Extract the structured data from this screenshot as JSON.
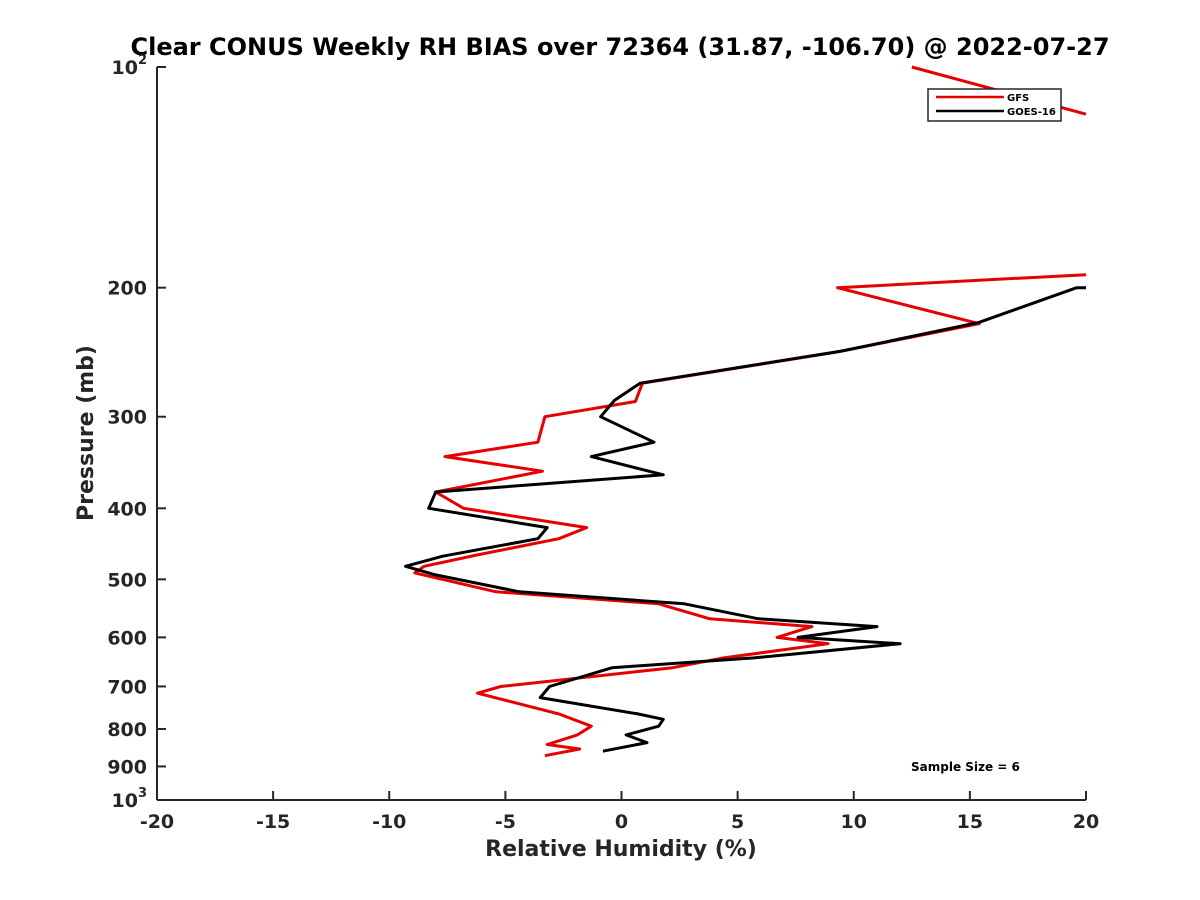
{
  "chart_data": {
    "type": "line",
    "title": "Clear CONUS Weekly RH BIAS over 72364 (31.87, -106.70) @ 2022-07-27",
    "xlabel": "Relative Humidity (%)",
    "ylabel": "Pressure (mb)",
    "xlim": [
      -20,
      20
    ],
    "ylim": [
      100,
      1000
    ],
    "yscale": "log",
    "yreversed": true,
    "grid": false,
    "legend_position": "top-right",
    "x_ticks": [
      -20,
      -15,
      -10,
      -5,
      0,
      5,
      10,
      15,
      20
    ],
    "x_tick_labels": [
      "-20",
      "-15",
      "-10",
      "-5",
      "0",
      "5",
      "10",
      "15",
      "20"
    ],
    "y_ticks": [
      {
        "value": 100,
        "base": "10",
        "exp": "2"
      },
      {
        "value": 200,
        "base": "200",
        "exp": ""
      },
      {
        "value": 300,
        "base": "300",
        "exp": ""
      },
      {
        "value": 400,
        "base": "400",
        "exp": ""
      },
      {
        "value": 500,
        "base": "500",
        "exp": ""
      },
      {
        "value": 600,
        "base": "600",
        "exp": ""
      },
      {
        "value": 700,
        "base": "700",
        "exp": ""
      },
      {
        "value": 800,
        "base": "800",
        "exp": ""
      },
      {
        "value": 900,
        "base": "900",
        "exp": ""
      },
      {
        "value": 1000,
        "base": "10",
        "exp": "3"
      }
    ],
    "series": [
      {
        "name": "GFS",
        "color": "#e60000",
        "segments": [
          [
            [
              12.5,
              100
            ],
            [
              20.0,
              116
            ]
          ],
          [
            [
              20.0,
              192
            ],
            [
              9.3,
              200
            ],
            [
              15.4,
              224
            ],
            [
              9.2,
              245
            ],
            [
              0.9,
              270
            ],
            [
              0.6,
              286
            ],
            [
              -3.3,
              300
            ],
            [
              -3.6,
              325
            ],
            [
              -7.6,
              340
            ],
            [
              -3.4,
              356
            ],
            [
              -8.0,
              380
            ],
            [
              -6.8,
              400
            ],
            [
              -1.5,
              425
            ],
            [
              -2.7,
              440
            ],
            [
              -6.2,
              463
            ],
            [
              -8.5,
              480
            ],
            [
              -8.9,
              490
            ],
            [
              -5.4,
              520
            ],
            [
              1.6,
              540
            ],
            [
              3.8,
              566
            ],
            [
              8.2,
              580
            ],
            [
              6.7,
              600
            ],
            [
              8.9,
              612
            ],
            [
              4.4,
              640
            ],
            [
              2.2,
              660
            ],
            [
              -5.2,
              700
            ],
            [
              -6.2,
              715
            ],
            [
              -2.7,
              763
            ],
            [
              -1.3,
              793
            ],
            [
              -1.9,
              815
            ],
            [
              -3.2,
              840
            ],
            [
              -1.8,
              852
            ],
            [
              -3.3,
              870
            ]
          ]
        ]
      },
      {
        "name": "GOES-16",
        "color": "#000000",
        "segments": [
          [
            [
              20.0,
              200
            ],
            [
              19.6,
              200
            ],
            [
              15.4,
              223
            ],
            [
              9.5,
              244
            ],
            [
              0.8,
              270
            ],
            [
              -0.3,
              285
            ],
            [
              -0.9,
              300
            ],
            [
              1.4,
              325
            ],
            [
              -1.3,
              340
            ],
            [
              1.8,
              360
            ],
            [
              -8.0,
              380
            ],
            [
              -8.3,
              400
            ],
            [
              -3.2,
              425
            ],
            [
              -3.6,
              440
            ],
            [
              -7.7,
              465
            ],
            [
              -9.3,
              480
            ],
            [
              -8.0,
              493
            ],
            [
              -4.4,
              520
            ],
            [
              2.7,
              540
            ],
            [
              5.9,
              566
            ],
            [
              11.0,
              580
            ],
            [
              7.6,
              600
            ],
            [
              12.0,
              612
            ],
            [
              5.7,
              640
            ],
            [
              -0.4,
              660
            ],
            [
              -3.1,
              700
            ],
            [
              -3.5,
              725
            ],
            [
              0.7,
              763
            ],
            [
              1.8,
              776
            ],
            [
              1.6,
              793
            ],
            [
              0.2,
              815
            ],
            [
              1.1,
              835
            ],
            [
              -0.8,
              858
            ]
          ]
        ]
      }
    ],
    "annotations": [
      {
        "text": "Sample Size = 6",
        "x": 13.5,
        "y": 900
      }
    ]
  }
}
